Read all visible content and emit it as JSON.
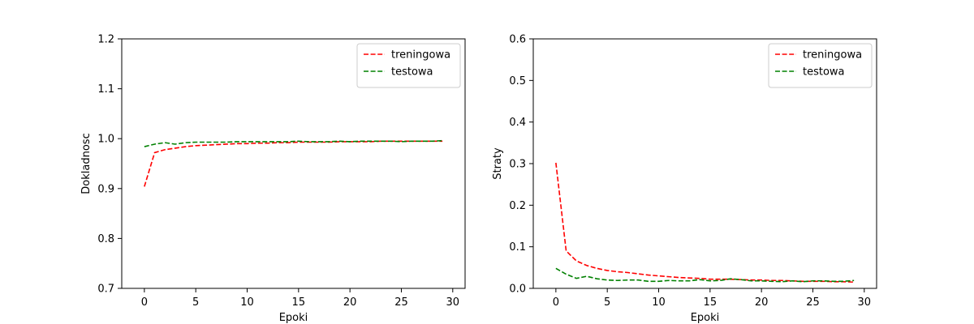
{
  "chart_data": [
    {
      "type": "line",
      "xlabel": "Epoki",
      "ylabel": "Dokladnosc",
      "xlim": [
        -2.2,
        31.2
      ],
      "ylim": [
        0.7,
        1.2
      ],
      "xticks": [
        0,
        5,
        10,
        15,
        20,
        25,
        30
      ],
      "xtick_labels": [
        "0",
        "5",
        "10",
        "15",
        "20",
        "25",
        "30"
      ],
      "yticks": [
        0.7,
        0.8,
        0.9,
        1.0,
        1.1,
        1.2
      ],
      "ytick_labels": [
        "0.7",
        "0.8",
        "0.9",
        "1.0",
        "1.1",
        "1.2"
      ],
      "legend_position": "top-right",
      "grid": false,
      "x": [
        0,
        1,
        2,
        3,
        4,
        5,
        6,
        7,
        8,
        9,
        10,
        11,
        12,
        13,
        14,
        15,
        16,
        17,
        18,
        19,
        20,
        21,
        22,
        23,
        24,
        25,
        26,
        27,
        28,
        29
      ],
      "series": [
        {
          "name": "treningowa",
          "color": "#ff0000",
          "style": "dashed",
          "values": [
            0.904,
            0.972,
            0.978,
            0.981,
            0.984,
            0.986,
            0.987,
            0.988,
            0.989,
            0.99,
            0.99,
            0.991,
            0.991,
            0.992,
            0.992,
            0.993,
            0.993,
            0.993,
            0.993,
            0.994,
            0.994,
            0.994,
            0.994,
            0.995,
            0.995,
            0.995,
            0.995,
            0.995,
            0.995,
            0.995
          ]
        },
        {
          "name": "testowa",
          "color": "#008000",
          "style": "dashed",
          "values": [
            0.984,
            0.989,
            0.992,
            0.989,
            0.992,
            0.993,
            0.993,
            0.993,
            0.993,
            0.994,
            0.994,
            0.994,
            0.994,
            0.994,
            0.994,
            0.995,
            0.994,
            0.994,
            0.994,
            0.995,
            0.994,
            0.995,
            0.995,
            0.995,
            0.995,
            0.994,
            0.995,
            0.995,
            0.995,
            0.996
          ]
        }
      ]
    },
    {
      "type": "line",
      "xlabel": "Epoki",
      "ylabel": "Straty",
      "xlim": [
        -2.2,
        31.2
      ],
      "ylim": [
        0.0,
        0.6
      ],
      "xticks": [
        0,
        5,
        10,
        15,
        20,
        25,
        30
      ],
      "xtick_labels": [
        "0",
        "5",
        "10",
        "15",
        "20",
        "25",
        "30"
      ],
      "yticks": [
        0.0,
        0.1,
        0.2,
        0.3,
        0.4,
        0.5,
        0.6
      ],
      "ytick_labels": [
        "0.0",
        "0.1",
        "0.2",
        "0.3",
        "0.4",
        "0.5",
        "0.6"
      ],
      "legend_position": "top-right",
      "grid": false,
      "x": [
        0,
        1,
        2,
        3,
        4,
        5,
        6,
        7,
        8,
        9,
        10,
        11,
        12,
        13,
        14,
        15,
        16,
        17,
        18,
        19,
        20,
        21,
        22,
        23,
        24,
        25,
        26,
        27,
        28,
        29
      ],
      "series": [
        {
          "name": "treningowa",
          "color": "#ff0000",
          "style": "dashed",
          "values": [
            0.302,
            0.09,
            0.066,
            0.055,
            0.048,
            0.043,
            0.04,
            0.038,
            0.035,
            0.032,
            0.03,
            0.028,
            0.026,
            0.025,
            0.024,
            0.022,
            0.022,
            0.022,
            0.021,
            0.02,
            0.02,
            0.019,
            0.019,
            0.018,
            0.017,
            0.017,
            0.017,
            0.016,
            0.016,
            0.015
          ]
        },
        {
          "name": "testowa",
          "color": "#008000",
          "style": "dashed",
          "values": [
            0.048,
            0.034,
            0.024,
            0.029,
            0.023,
            0.02,
            0.019,
            0.02,
            0.02,
            0.017,
            0.017,
            0.019,
            0.018,
            0.018,
            0.021,
            0.018,
            0.019,
            0.023,
            0.021,
            0.018,
            0.018,
            0.017,
            0.016,
            0.018,
            0.016,
            0.018,
            0.018,
            0.017,
            0.017,
            0.019
          ]
        }
      ]
    }
  ]
}
